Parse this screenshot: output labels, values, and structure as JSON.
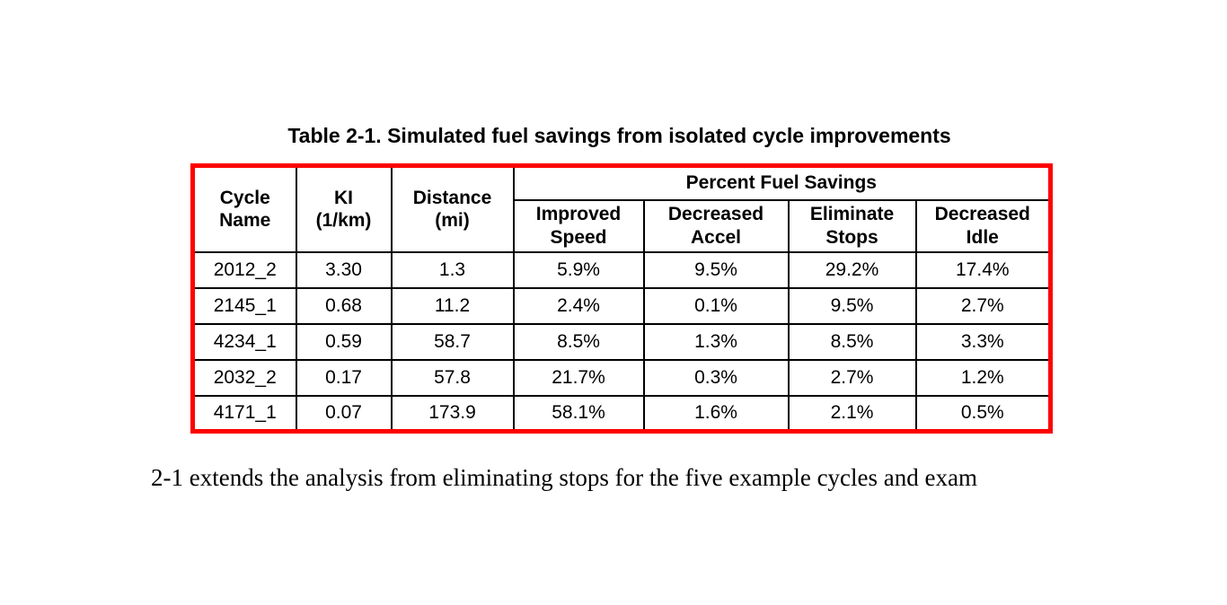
{
  "caption": "Table 2-1. Simulated fuel savings from isolated cycle improvements",
  "table": {
    "border_color": "#fe0000",
    "grid_color": "#000000",
    "group_header": "Percent Fuel Savings",
    "headers": {
      "cycle_name": "Cycle\nName",
      "ki": "KI\n(1/km)",
      "distance": "Distance\n(mi)",
      "improved_speed": "Improved\nSpeed",
      "decreased_accel": "Decreased\nAccel",
      "eliminate_stops": "Eliminate\nStops",
      "decreased_idle": "Decreased\nIdle"
    },
    "rows": [
      [
        "2012_2",
        "3.30",
        "1.3",
        "5.9%",
        "9.5%",
        "29.2%",
        "17.4%"
      ],
      [
        "2145_1",
        "0.68",
        "11.2",
        "2.4%",
        "0.1%",
        "9.5%",
        "2.7%"
      ],
      [
        "4234_1",
        "0.59",
        "58.7",
        "8.5%",
        "1.3%",
        "8.5%",
        "3.3%"
      ],
      [
        "2032_2",
        "0.17",
        "57.8",
        "21.7%",
        "0.3%",
        "2.7%",
        "1.2%"
      ],
      [
        "4171_1",
        "0.07",
        "173.9",
        "58.1%",
        "1.6%",
        "2.1%",
        "0.5%"
      ]
    ]
  },
  "body_text": "2-1 extends the analysis from eliminating stops for the five example cycles and exam"
}
